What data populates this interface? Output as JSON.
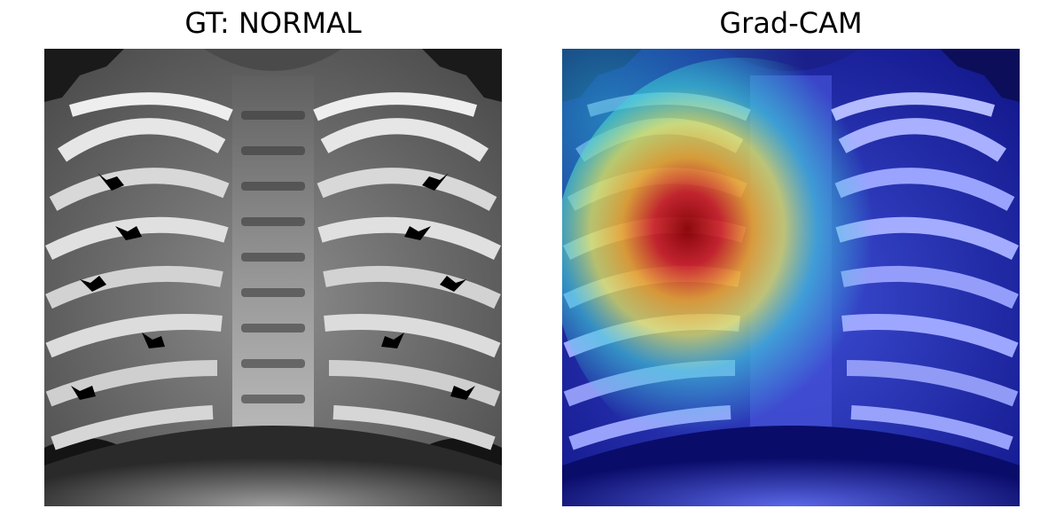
{
  "left_panel": {
    "title": "GT: NORMAL"
  },
  "right_panel": {
    "title": "Grad-CAM"
  }
}
